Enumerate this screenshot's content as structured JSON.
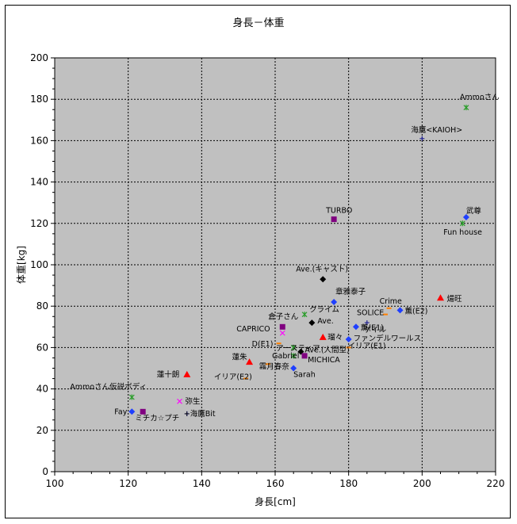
{
  "chart_data": {
    "type": "scatter",
    "title": "身長－体重",
    "xlabel": "身長[cm]",
    "ylabel": "体重[kg]",
    "xlim": [
      100,
      220
    ],
    "ylim": [
      0,
      200
    ],
    "xticks": [
      100,
      120,
      140,
      160,
      180,
      200,
      220
    ],
    "yticks": [
      0,
      20,
      40,
      60,
      80,
      100,
      120,
      140,
      160,
      180,
      200
    ],
    "grid": true,
    "legend": "none",
    "background_color": "#c0c0c0",
    "points": [
      {
        "label": "Ammoさん",
        "x": 212,
        "y": 176,
        "marker": "asterisk",
        "color": "#2a9d2a"
      },
      {
        "label": "海鷹<KAIOH>",
        "x": 200,
        "y": 161,
        "marker": "plus",
        "color": "#1f1f8f"
      },
      {
        "label": "TURBO",
        "x": 176,
        "y": 122,
        "marker": "square",
        "color": "#800080"
      },
      {
        "label": "武尊",
        "x": 212,
        "y": 123,
        "marker": "diamond",
        "color": "#1f3fff"
      },
      {
        "label": "Fun house",
        "x": 211,
        "y": 120,
        "marker": "asterisk",
        "color": "#2a9d2a"
      },
      {
        "label": "Ave.(キャスト)",
        "x": 173,
        "y": 93,
        "marker": "diamond",
        "color": "#000000"
      },
      {
        "label": "章雅泰子",
        "x": 176,
        "y": 82,
        "marker": "diamond",
        "color": "#1f3fff"
      },
      {
        "label": "煬旺",
        "x": 205,
        "y": 84,
        "marker": "triangle",
        "color": "#ff0000"
      },
      {
        "label": "Crime",
        "x": 191,
        "y": 79,
        "marker": "dash",
        "color": "#ff8000"
      },
      {
        "label": "薫(E2)",
        "x": 194,
        "y": 78,
        "marker": "diamond",
        "color": "#1f3fff"
      },
      {
        "label": "SOLICE",
        "x": 190,
        "y": 76,
        "marker": "dash",
        "color": "#ff8000"
      },
      {
        "label": "ゲイル",
        "x": 185,
        "y": 72,
        "marker": "plus",
        "color": "#1f1f8f"
      },
      {
        "label": "倉子さん",
        "x": 162,
        "y": 70,
        "marker": "square",
        "color": "#800080"
      },
      {
        "label": "クライム",
        "x": 168,
        "y": 76,
        "marker": "asterisk",
        "color": "#2a9d2a"
      },
      {
        "label": "Ave.",
        "x": 170,
        "y": 72,
        "marker": "diamond",
        "color": "#000000"
      },
      {
        "label": "CAPRICO",
        "x": 162,
        "y": 67,
        "marker": "cross",
        "color": "#ff00ff"
      },
      {
        "label": "薫(E1)",
        "x": 182,
        "y": 70,
        "marker": "diamond",
        "color": "#1f3fff"
      },
      {
        "label": "瑠々",
        "x": 173,
        "y": 65,
        "marker": "triangle",
        "color": "#ff0000"
      },
      {
        "label": "ファンデルワールス",
        "x": 180,
        "y": 64,
        "marker": "diamond",
        "color": "#1f3fff"
      },
      {
        "label": "D(E1)",
        "x": 161,
        "y": 62,
        "marker": "dash",
        "color": "#ff8000"
      },
      {
        "label": "アースティア",
        "x": 165,
        "y": 60,
        "marker": "asterisk",
        "color": "#2a9d2a"
      },
      {
        "label": "Ave.(人間型)",
        "x": 167,
        "y": 58,
        "marker": "diamond",
        "color": "#000000"
      },
      {
        "label": "イリア(E1)",
        "x": 180,
        "y": 60,
        "marker": "dash",
        "color": "#ff8000"
      },
      {
        "label": "Gabriel",
        "x": 165,
        "y": 56,
        "marker": "asterisk",
        "color": "#2a9d2a"
      },
      {
        "label": "MICHICA",
        "x": 168,
        "y": 56,
        "marker": "square",
        "color": "#800080"
      },
      {
        "label": "蓮朱",
        "x": 153,
        "y": 53,
        "marker": "triangle",
        "color": "#ff0000"
      },
      {
        "label": "霧月春奈",
        "x": 158,
        "y": 52,
        "marker": "dash",
        "color": "#ff8000"
      },
      {
        "label": "Sarah",
        "x": 165,
        "y": 50,
        "marker": "diamond",
        "color": "#1f3fff"
      },
      {
        "label": "蓮十朗",
        "x": 136,
        "y": 47,
        "marker": "triangle",
        "color": "#ff0000"
      },
      {
        "label": "イリア(E2)",
        "x": 152,
        "y": 45,
        "marker": "dash",
        "color": "#ff8000"
      },
      {
        "label": "Ammoさん仮説ボディ",
        "x": 121,
        "y": 36,
        "marker": "asterisk",
        "color": "#2a9d2a"
      },
      {
        "label": "弥生",
        "x": 134,
        "y": 34,
        "marker": "cross",
        "color": "#ff00ff"
      },
      {
        "label": "Fay",
        "x": 121,
        "y": 29,
        "marker": "diamond",
        "color": "#1f3fff"
      },
      {
        "label": "ミチカ☆プチ",
        "x": 124,
        "y": 29,
        "marker": "square",
        "color": "#800080"
      },
      {
        "label": "+海鷹Bit",
        "x": 136,
        "y": 28,
        "marker": "plus",
        "color": "#1f1f8f"
      }
    ]
  }
}
